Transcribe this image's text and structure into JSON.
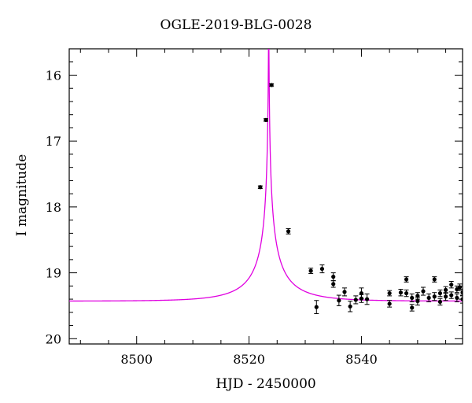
{
  "chart_data": {
    "type": "scatter",
    "title": "OGLE-2019-BLG-0028",
    "xlabel": "HJD - 2450000",
    "ylabel": "I magnitude",
    "xlim": [
      8488,
      8558
    ],
    "ylim": [
      15.6,
      20.08
    ],
    "y_inverted": true,
    "x_ticks": [
      8500,
      8520,
      8540
    ],
    "y_ticks": [
      16,
      17,
      18,
      19,
      20
    ],
    "grid": false,
    "colors": {
      "model": "#e000e0",
      "points": "#000000"
    },
    "model": {
      "name": "",
      "type": "microlensing-curve",
      "t0": 8523.5,
      "u0": 0.005,
      "tE": 9.1,
      "baseline_mag": 19.43,
      "blend_fraction": 0.22
    },
    "series": [
      {
        "name": "",
        "points": [
          {
            "x": 8522.0,
            "y": 17.7,
            "err": 0.02
          },
          {
            "x": 8523.0,
            "y": 16.68,
            "err": 0.02
          },
          {
            "x": 8524.0,
            "y": 16.15,
            "err": 0.02
          },
          {
            "x": 8527.0,
            "y": 18.37,
            "err": 0.04
          },
          {
            "x": 8531.0,
            "y": 18.97,
            "err": 0.04
          },
          {
            "x": 8532.0,
            "y": 19.52,
            "err": 0.1
          },
          {
            "x": 8533.0,
            "y": 18.94,
            "err": 0.06
          },
          {
            "x": 8535.0,
            "y": 19.06,
            "err": 0.06
          },
          {
            "x": 8535.0,
            "y": 19.17,
            "err": 0.05
          },
          {
            "x": 8536.0,
            "y": 19.42,
            "err": 0.08
          },
          {
            "x": 8537.0,
            "y": 19.29,
            "err": 0.06
          },
          {
            "x": 8538.0,
            "y": 19.51,
            "err": 0.08
          },
          {
            "x": 8539.0,
            "y": 19.41,
            "err": 0.06
          },
          {
            "x": 8540.0,
            "y": 19.31,
            "err": 0.08
          },
          {
            "x": 8540.0,
            "y": 19.39,
            "err": 0.06
          },
          {
            "x": 8541.0,
            "y": 19.4,
            "err": 0.08
          },
          {
            "x": 8545.0,
            "y": 19.31,
            "err": 0.04
          },
          {
            "x": 8545.0,
            "y": 19.47,
            "err": 0.05
          },
          {
            "x": 8547.0,
            "y": 19.3,
            "err": 0.05
          },
          {
            "x": 8548.0,
            "y": 19.1,
            "err": 0.04
          },
          {
            "x": 8548.0,
            "y": 19.31,
            "err": 0.05
          },
          {
            "x": 8549.0,
            "y": 19.38,
            "err": 0.06
          },
          {
            "x": 8549.0,
            "y": 19.53,
            "err": 0.05
          },
          {
            "x": 8550.0,
            "y": 19.43,
            "err": 0.06
          },
          {
            "x": 8550.0,
            "y": 19.35,
            "err": 0.05
          },
          {
            "x": 8551.0,
            "y": 19.28,
            "err": 0.06
          },
          {
            "x": 8552.0,
            "y": 19.38,
            "err": 0.06
          },
          {
            "x": 8553.0,
            "y": 19.1,
            "err": 0.04
          },
          {
            "x": 8553.0,
            "y": 19.36,
            "err": 0.06
          },
          {
            "x": 8554.0,
            "y": 19.44,
            "err": 0.05
          },
          {
            "x": 8554.0,
            "y": 19.31,
            "err": 0.05
          },
          {
            "x": 8555.0,
            "y": 19.26,
            "err": 0.05
          },
          {
            "x": 8555.0,
            "y": 19.36,
            "err": 0.06
          },
          {
            "x": 8556.0,
            "y": 19.18,
            "err": 0.05
          },
          {
            "x": 8556.0,
            "y": 19.34,
            "err": 0.05
          },
          {
            "x": 8557.0,
            "y": 19.25,
            "err": 0.05
          },
          {
            "x": 8557.0,
            "y": 19.38,
            "err": 0.06
          },
          {
            "x": 8557.5,
            "y": 19.22,
            "err": 0.05
          },
          {
            "x": 8558.0,
            "y": 19.4,
            "err": 0.06
          },
          {
            "x": 8558.0,
            "y": 19.3,
            "err": 0.05
          }
        ]
      }
    ]
  }
}
